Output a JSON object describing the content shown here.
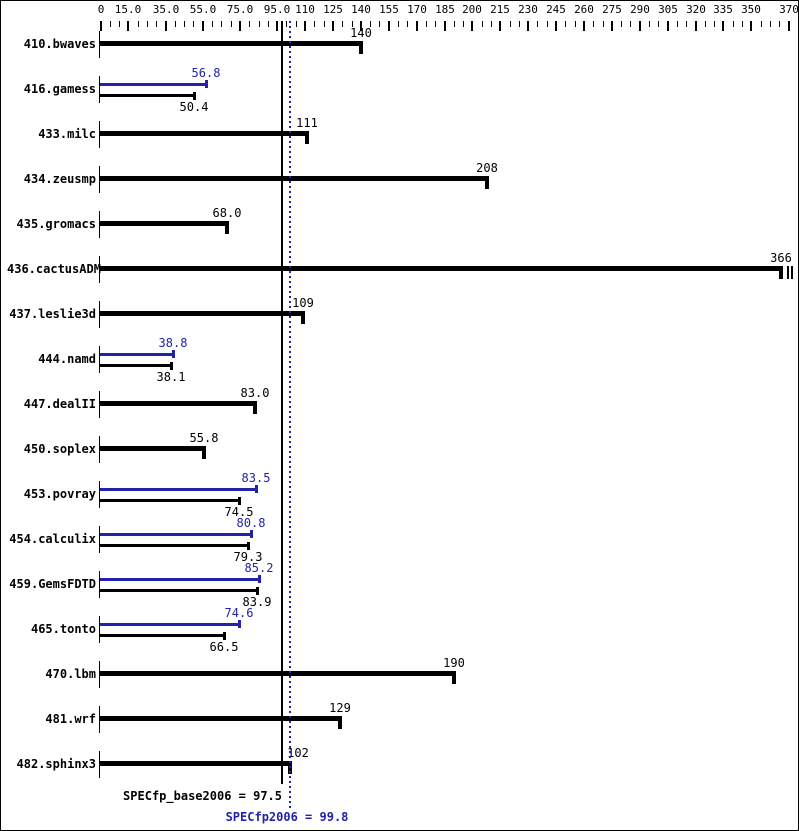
{
  "window": {
    "background": "#ffffff",
    "border_color": "#000000"
  },
  "colors": {
    "base_bar": "#000000",
    "peak_bar": "#2222aa",
    "peak_text": "#2222aa",
    "base_text": "#000000"
  },
  "chart_data": {
    "type": "bar",
    "orientation": "horizontal",
    "xlim": [
      0,
      370
    ],
    "tick_step": 5,
    "grid": false,
    "major_ticks": [
      {
        "value": 0,
        "label": "0"
      },
      {
        "value": 15,
        "label": "15.0"
      },
      {
        "value": 35,
        "label": "35.0"
      },
      {
        "value": 55,
        "label": "55.0"
      },
      {
        "value": 75,
        "label": "75.0"
      },
      {
        "value": 95,
        "label": "95.0"
      },
      {
        "value": 110,
        "label": "110"
      },
      {
        "value": 125,
        "label": "125"
      },
      {
        "value": 140,
        "label": "140"
      },
      {
        "value": 155,
        "label": "155"
      },
      {
        "value": 170,
        "label": "170"
      },
      {
        "value": 185,
        "label": "185"
      },
      {
        "value": 200,
        "label": "200"
      },
      {
        "value": 215,
        "label": "215"
      },
      {
        "value": 230,
        "label": "230"
      },
      {
        "value": 245,
        "label": "245"
      },
      {
        "value": 260,
        "label": "260"
      },
      {
        "value": 275,
        "label": "275"
      },
      {
        "value": 290,
        "label": "290"
      },
      {
        "value": 305,
        "label": "305"
      },
      {
        "value": 320,
        "label": "320"
      },
      {
        "value": 335,
        "label": "335"
      },
      {
        "value": 350,
        "label": "350"
      },
      {
        "value": 370,
        "label": "370"
      }
    ],
    "rows": [
      {
        "benchmark": "410.bwaves",
        "type": "single",
        "value": 140,
        "label": "140"
      },
      {
        "benchmark": "416.gamess",
        "type": "dual",
        "peak": 56.8,
        "peak_label": "56.8",
        "base": 50.4,
        "base_label": "50.4"
      },
      {
        "benchmark": "433.milc",
        "type": "single",
        "value": 111,
        "label": "111"
      },
      {
        "benchmark": "434.zeusmp",
        "type": "single",
        "value": 208,
        "label": "208"
      },
      {
        "benchmark": "435.gromacs",
        "type": "single",
        "value": 68.0,
        "label": "68.0"
      },
      {
        "benchmark": "436.cactusADM",
        "type": "single",
        "value": 366,
        "label": "366",
        "extra_end_ticks": 2
      },
      {
        "benchmark": "437.leslie3d",
        "type": "single",
        "value": 109,
        "label": "109"
      },
      {
        "benchmark": "444.namd",
        "type": "dual",
        "peak": 38.8,
        "peak_label": "38.8",
        "base": 38.1,
        "base_label": "38.1"
      },
      {
        "benchmark": "447.dealII",
        "type": "single",
        "value": 83.0,
        "label": "83.0"
      },
      {
        "benchmark": "450.soplex",
        "type": "single",
        "value": 55.8,
        "label": "55.8"
      },
      {
        "benchmark": "453.povray",
        "type": "dual",
        "peak": 83.5,
        "peak_label": "83.5",
        "base": 74.5,
        "base_label": "74.5"
      },
      {
        "benchmark": "454.calculix",
        "type": "dual",
        "peak": 80.8,
        "peak_label": "80.8",
        "base": 79.3,
        "base_label": "79.3"
      },
      {
        "benchmark": "459.GemsFDTD",
        "type": "dual",
        "peak": 85.2,
        "peak_label": "85.2",
        "base": 83.9,
        "base_label": "83.9"
      },
      {
        "benchmark": "465.tonto",
        "type": "dual",
        "peak": 74.6,
        "peak_label": "74.6",
        "base": 66.5,
        "base_label": "66.5"
      },
      {
        "benchmark": "470.lbm",
        "type": "single",
        "value": 190,
        "label": "190"
      },
      {
        "benchmark": "481.wrf",
        "type": "single",
        "value": 129,
        "label": "129"
      },
      {
        "benchmark": "482.sphinx3",
        "type": "single",
        "value": 102,
        "label": "102",
        "label_dx": 8
      }
    ],
    "reference_lines": [
      {
        "name": "SPECfp_base2006",
        "value": 97.5,
        "style": "solid",
        "color": "#000000"
      },
      {
        "name": "SPECfp2006",
        "value": 99.8,
        "style": "dotted",
        "color": "#2222aa"
      }
    ],
    "summary": {
      "base_label": "SPECfp_base2006 = 97.5",
      "peak_label": "SPECfp2006 = 99.8",
      "base_mean": 97.5,
      "peak_mean": 99.8
    }
  }
}
